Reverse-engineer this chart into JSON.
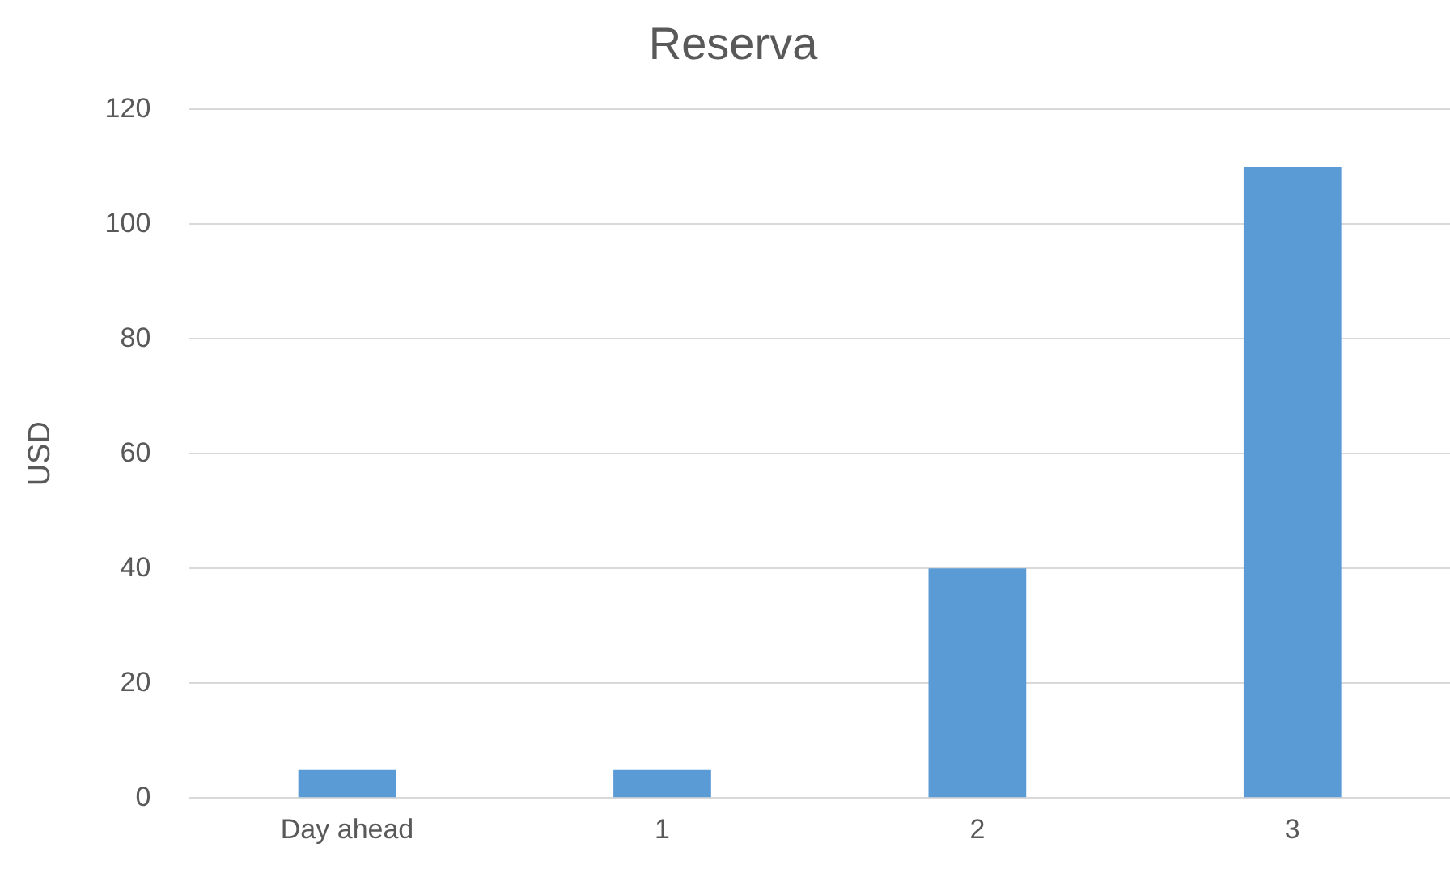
{
  "chart_data": {
    "type": "bar",
    "title": "Reserva",
    "ylabel": "USD",
    "categories": [
      "Day ahead",
      "1",
      "2",
      "3"
    ],
    "values": [
      5,
      5,
      40,
      110
    ],
    "color": "#5b9bd5",
    "ylim": [
      0,
      120
    ],
    "yticks": [
      0,
      20,
      40,
      60,
      80,
      100,
      120
    ],
    "grid": "y"
  }
}
